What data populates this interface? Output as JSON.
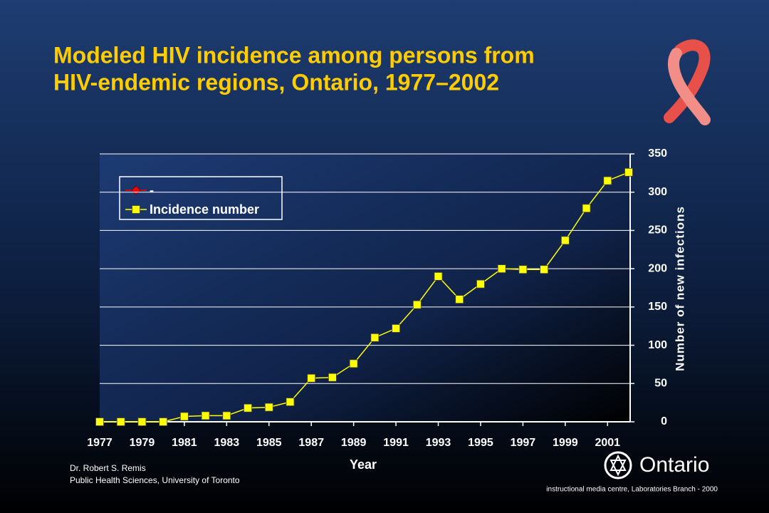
{
  "chart_data": {
    "type": "line",
    "title": [
      "Modeled HIV incidence among persons from",
      "HIV-endemic regions, Ontario, 1977–2002"
    ],
    "x_label": "Year",
    "y_label": "Number of new infections",
    "x": [
      1977,
      1978,
      1979,
      1980,
      1981,
      1982,
      1983,
      1984,
      1985,
      1986,
      1987,
      1988,
      1989,
      1990,
      1991,
      1992,
      1993,
      1994,
      1995,
      1996,
      1997,
      1998,
      1999,
      2000,
      2001,
      2002
    ],
    "series": [
      {
        "name": "-",
        "color": "#ff0000",
        "marker": "diamond",
        "values": [
          null,
          null,
          null,
          null,
          null,
          null,
          null,
          null,
          null,
          null,
          null,
          null,
          null,
          null,
          null,
          null,
          null,
          null,
          null,
          null,
          null,
          null,
          null,
          null,
          null,
          null
        ]
      },
      {
        "name": "Incidence number",
        "color": "#ffff00",
        "marker": "square",
        "values": [
          0,
          0,
          0,
          0,
          7,
          8,
          8,
          18,
          19,
          26,
          57,
          58,
          76,
          110,
          122,
          153,
          190,
          160,
          180,
          200,
          199,
          199,
          237,
          279,
          315,
          326
        ]
      }
    ],
    "xlim": [
      1977,
      2002
    ],
    "xticks": [
      1977,
      1979,
      1981,
      1983,
      1985,
      1987,
      1989,
      1991,
      1993,
      1995,
      1997,
      1999,
      2001
    ],
    "ylim": [
      0,
      350
    ],
    "yticks": [
      0,
      50,
      100,
      150,
      200,
      250,
      300,
      350
    ],
    "y_axis_side": "right",
    "grid": true,
    "legend": "upper left"
  },
  "footer": {
    "author": "Dr. Robert S. Remis",
    "affiliation": "Public Health Sciences, University of Toronto",
    "credit": "instructional media centre, Laboratories Branch - 2000",
    "logo": "Ontario"
  }
}
